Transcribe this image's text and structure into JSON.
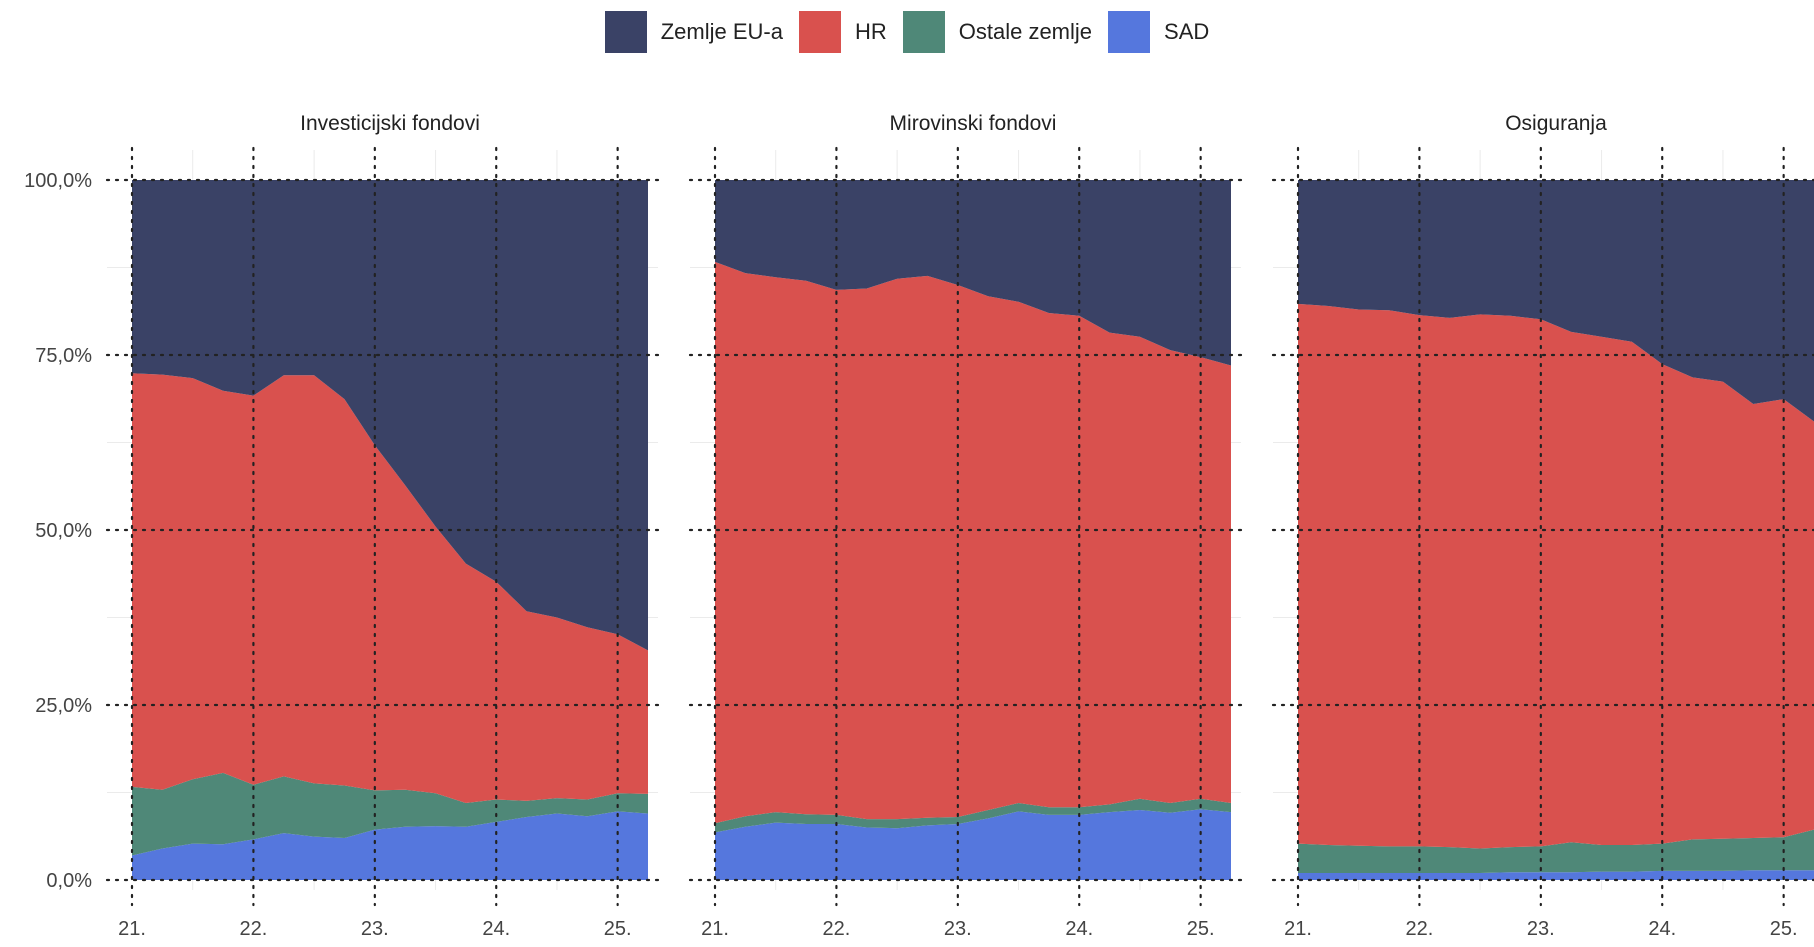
{
  "legend": {
    "items": [
      {
        "label": "Zemlje EU-a",
        "color": "#3a4266"
      },
      {
        "label": "HR",
        "color": "#d9514e"
      },
      {
        "label": "Ostale zemlje",
        "color": "#4f8878"
      },
      {
        "label": "SAD",
        "color": "#5577dd"
      }
    ]
  },
  "chart_data": {
    "type": "area",
    "stacked": true,
    "grid": true,
    "ylim": [
      0,
      100
    ],
    "y_ticks": [
      "0,0%",
      "25,0%",
      "50,0%",
      "75,0%",
      "100,0%"
    ],
    "y_tick_values": [
      0,
      25,
      50,
      75,
      100
    ],
    "x_ticks": [
      "21.",
      "22.",
      "23.",
      "24.",
      "25."
    ],
    "x_tick_values": [
      2021.0,
      2022.0,
      2023.0,
      2024.0,
      2025.0
    ],
    "x": [
      2021.0,
      2021.25,
      2021.5,
      2021.75,
      2022.0,
      2022.25,
      2022.5,
      2022.75,
      2023.0,
      2023.25,
      2023.5,
      2023.75,
      2024.0,
      2024.25,
      2024.5,
      2024.75,
      2025.0,
      2025.25
    ],
    "xlim": [
      2021.0,
      2025.25
    ],
    "panels": [
      {
        "title": "Investicijski fondovi",
        "series": [
          {
            "name": "SAD",
            "values": [
              3.5,
              4.5,
              5.2,
              5.1,
              5.8,
              6.7,
              6.2,
              6.0,
              7.2,
              7.6,
              7.7,
              7.6,
              8.3,
              9.0,
              9.5,
              9.1,
              9.8,
              9.5
            ]
          },
          {
            "name": "Ostale zemlje",
            "values": [
              9.8,
              8.4,
              9.2,
              10.2,
              7.8,
              8.1,
              7.6,
              7.5,
              5.6,
              5.3,
              4.7,
              3.4,
              3.2,
              2.3,
              2.2,
              2.4,
              2.6,
              2.8
            ]
          },
          {
            "name": "HR",
            "values": [
              59.1,
              59.3,
              57.3,
              54.6,
              55.6,
              57.3,
              58.3,
              55.2,
              49.3,
              43.5,
              38.1,
              34.2,
              31.1,
              27.1,
              25.8,
              24.6,
              22.7,
              20.5
            ]
          },
          {
            "name": "Zemlje EU-a",
            "values": [
              27.6,
              27.8,
              28.3,
              30.1,
              30.8,
              27.9,
              27.9,
              31.3,
              37.9,
              43.6,
              49.5,
              54.8,
              57.4,
              61.6,
              62.5,
              63.9,
              64.9,
              67.2
            ]
          }
        ]
      },
      {
        "title": "Mirovinski fondovi",
        "series": [
          {
            "name": "SAD",
            "values": [
              6.8,
              7.6,
              8.2,
              8.0,
              8.0,
              7.5,
              7.4,
              7.8,
              8.0,
              8.8,
              9.8,
              9.3,
              9.3,
              9.7,
              10.0,
              9.6,
              10.1,
              9.7
            ]
          },
          {
            "name": "Ostale zemlje",
            "values": [
              1.3,
              1.5,
              1.5,
              1.4,
              1.3,
              1.2,
              1.3,
              1.1,
              1.0,
              1.2,
              1.2,
              1.1,
              1.1,
              1.1,
              1.6,
              1.4,
              1.5,
              1.3
            ]
          },
          {
            "name": "HR",
            "values": [
              80.2,
              77.6,
              76.4,
              76.2,
              75.0,
              75.8,
              77.2,
              77.4,
              76.0,
              73.4,
              71.6,
              70.6,
              70.2,
              67.4,
              66.0,
              64.7,
              63.1,
              62.5
            ]
          },
          {
            "name": "Zemlje EU-a",
            "values": [
              11.7,
              13.3,
              13.9,
              14.4,
              15.7,
              15.5,
              14.1,
              13.7,
              15.0,
              16.6,
              17.4,
              19.0,
              19.4,
              21.8,
              22.4,
              24.3,
              25.3,
              26.5
            ]
          }
        ]
      },
      {
        "title": "Osiguranja",
        "series": [
          {
            "name": "SAD",
            "values": [
              1.0,
              1.0,
              1.0,
              1.0,
              1.0,
              1.0,
              1.0,
              1.1,
              1.1,
              1.1,
              1.2,
              1.2,
              1.3,
              1.3,
              1.3,
              1.4,
              1.4,
              1.4
            ]
          },
          {
            "name": "Ostale zemlje",
            "values": [
              4.2,
              4.0,
              3.9,
              3.8,
              3.8,
              3.7,
              3.5,
              3.6,
              3.7,
              4.3,
              3.8,
              3.8,
              3.9,
              4.5,
              4.6,
              4.6,
              4.7,
              5.8
            ]
          },
          {
            "name": "HR",
            "values": [
              77.1,
              77.0,
              76.6,
              76.6,
              75.9,
              75.6,
              76.3,
              75.9,
              75.3,
              72.9,
              72.6,
              71.9,
              68.5,
              66.0,
              65.3,
              62.0,
              62.6,
              58.3
            ]
          },
          {
            "name": "Zemlje EU-a",
            "values": [
              17.7,
              18.0,
              18.5,
              18.6,
              19.3,
              19.7,
              19.2,
              19.4,
              19.9,
              21.7,
              22.4,
              23.1,
              26.3,
              28.2,
              28.8,
              32.0,
              31.3,
              34.5
            ]
          }
        ]
      }
    ]
  }
}
